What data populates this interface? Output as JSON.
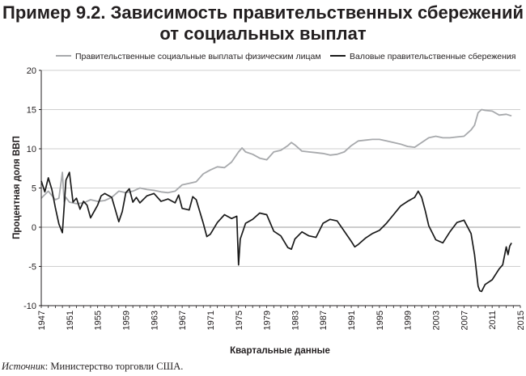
{
  "title_line1": "Пример 9.2. Зависимость правительственных сбережений",
  "title_line2": "от социальных выплат",
  "source_label": "Источник",
  "source_text": ": Министерство торговли США.",
  "colors": {
    "transfers": "#a7a9ac",
    "savings": "#1a1a1a",
    "axis": "#231f20",
    "grid": "#cfcfcf"
  },
  "chart_data": {
    "type": "line",
    "xlabel": "Квартальные данные",
    "ylabel": "Процентная доля ВВП",
    "xlim": [
      1947,
      2015
    ],
    "ylim": [
      -10,
      20
    ],
    "x_ticks": [
      1947,
      1951,
      1955,
      1959,
      1963,
      1967,
      1971,
      1975,
      1979,
      1983,
      1987,
      1991,
      1995,
      1999,
      2003,
      2007,
      2011,
      2015
    ],
    "y_ticks": [
      -10,
      -5,
      0,
      5,
      10,
      15,
      20
    ],
    "grid": "horizontal",
    "legend_position": "top",
    "series": [
      {
        "name": "Правительственные социальные выплаты физическим лицам",
        "color": "#a7a9ac",
        "x": [
          1947,
          1948,
          1949,
          1949.5,
          1950,
          1950.25,
          1950.5,
          1951,
          1952,
          1953,
          1954,
          1955,
          1956,
          1957,
          1958,
          1959,
          1960,
          1961,
          1962,
          1963,
          1964,
          1965,
          1966,
          1967,
          1968,
          1969,
          1970,
          1971,
          1972,
          1973,
          1974,
          1975,
          1975.5,
          1976,
          1977,
          1978,
          1979,
          1980,
          1981,
          1982,
          1982.5,
          1983,
          1984,
          1985,
          1986,
          1987,
          1988,
          1989,
          1990,
          1991,
          1992,
          1993,
          1994,
          1995,
          1996,
          1997,
          1998,
          1999,
          2000,
          2001,
          2002,
          2003,
          2004,
          2005,
          2006,
          2007,
          2008,
          2008.5,
          2009,
          2009.5,
          2010,
          2011,
          2012,
          2013,
          2013.75
        ],
        "y": [
          3.7,
          4.6,
          3.5,
          3.7,
          7.0,
          3.2,
          3.8,
          3.2,
          3.0,
          3.1,
          3.5,
          3.3,
          3.4,
          3.8,
          4.6,
          4.4,
          4.6,
          5.0,
          4.8,
          4.7,
          4.5,
          4.4,
          4.6,
          5.4,
          5.6,
          5.8,
          6.8,
          7.3,
          7.7,
          7.6,
          8.3,
          9.6,
          10.1,
          9.6,
          9.3,
          8.8,
          8.6,
          9.6,
          9.8,
          10.4,
          10.8,
          10.5,
          9.7,
          9.6,
          9.5,
          9.4,
          9.2,
          9.3,
          9.6,
          10.4,
          11.0,
          11.1,
          11.2,
          11.2,
          11.0,
          10.8,
          10.6,
          10.3,
          10.2,
          10.8,
          11.4,
          11.6,
          11.4,
          11.4,
          11.5,
          11.6,
          12.4,
          13.0,
          14.6,
          15.0,
          14.9,
          14.8,
          14.3,
          14.4,
          14.2
        ]
      },
      {
        "name": "Валовые правительственные сбережения",
        "color": "#1a1a1a",
        "x": [
          1947,
          1947.5,
          1948,
          1948.5,
          1949,
          1949.5,
          1950,
          1950.5,
          1951,
          1951.5,
          1952,
          1952.5,
          1953,
          1953.5,
          1954,
          1955,
          1955.5,
          1956,
          1957,
          1958,
          1958.5,
          1959,
          1959.5,
          1960,
          1960.5,
          1961,
          1962,
          1963,
          1964,
          1965,
          1966,
          1966.5,
          1967,
          1968,
          1968.5,
          1969,
          1970,
          1970.5,
          1971,
          1972,
          1973,
          1974,
          1974.75,
          1975,
          1975.25,
          1976,
          1977,
          1978,
          1979,
          1980,
          1981,
          1982,
          1982.5,
          1983,
          1984,
          1985,
          1986,
          1987,
          1988,
          1989,
          1990,
          1991,
          1991.5,
          1992,
          1993,
          1994,
          1995,
          1996,
          1997,
          1998,
          1999,
          2000,
          2000.5,
          2001,
          2001.5,
          2002,
          2003,
          2004,
          2005,
          2006,
          2007,
          2008,
          2008.5,
          2009,
          2009.25,
          2009.5,
          2010,
          2011,
          2012,
          2012.5,
          2013,
          2013.25,
          2013.5,
          2013.75
        ],
        "y": [
          5.9,
          4.5,
          6.3,
          4.8,
          2.5,
          0.4,
          -0.7,
          6.0,
          7.0,
          3.2,
          3.7,
          2.3,
          3.3,
          2.8,
          1.2,
          2.8,
          4.0,
          4.3,
          3.8,
          0.7,
          2.0,
          4.4,
          4.9,
          3.2,
          3.8,
          3.1,
          4.0,
          4.3,
          3.3,
          3.6,
          3.1,
          4.1,
          2.4,
          2.2,
          3.9,
          3.5,
          0.5,
          -1.2,
          -0.9,
          0.6,
          1.6,
          1.1,
          1.4,
          -4.8,
          -1.5,
          0.5,
          1.0,
          1.8,
          1.6,
          -0.5,
          -1.1,
          -2.6,
          -2.8,
          -1.5,
          -0.6,
          -1.1,
          -1.3,
          0.5,
          1.0,
          0.8,
          -0.5,
          -1.8,
          -2.5,
          -2.2,
          -1.4,
          -0.8,
          -0.4,
          0.5,
          1.6,
          2.7,
          3.3,
          3.8,
          4.6,
          3.8,
          2.1,
          0.2,
          -1.6,
          -2.0,
          -0.6,
          0.6,
          0.9,
          -0.8,
          -3.5,
          -7.5,
          -8.1,
          -8.2,
          -7.3,
          -6.7,
          -5.3,
          -4.8,
          -2.5,
          -3.5,
          -2.4,
          -2.0
        ]
      }
    ]
  }
}
